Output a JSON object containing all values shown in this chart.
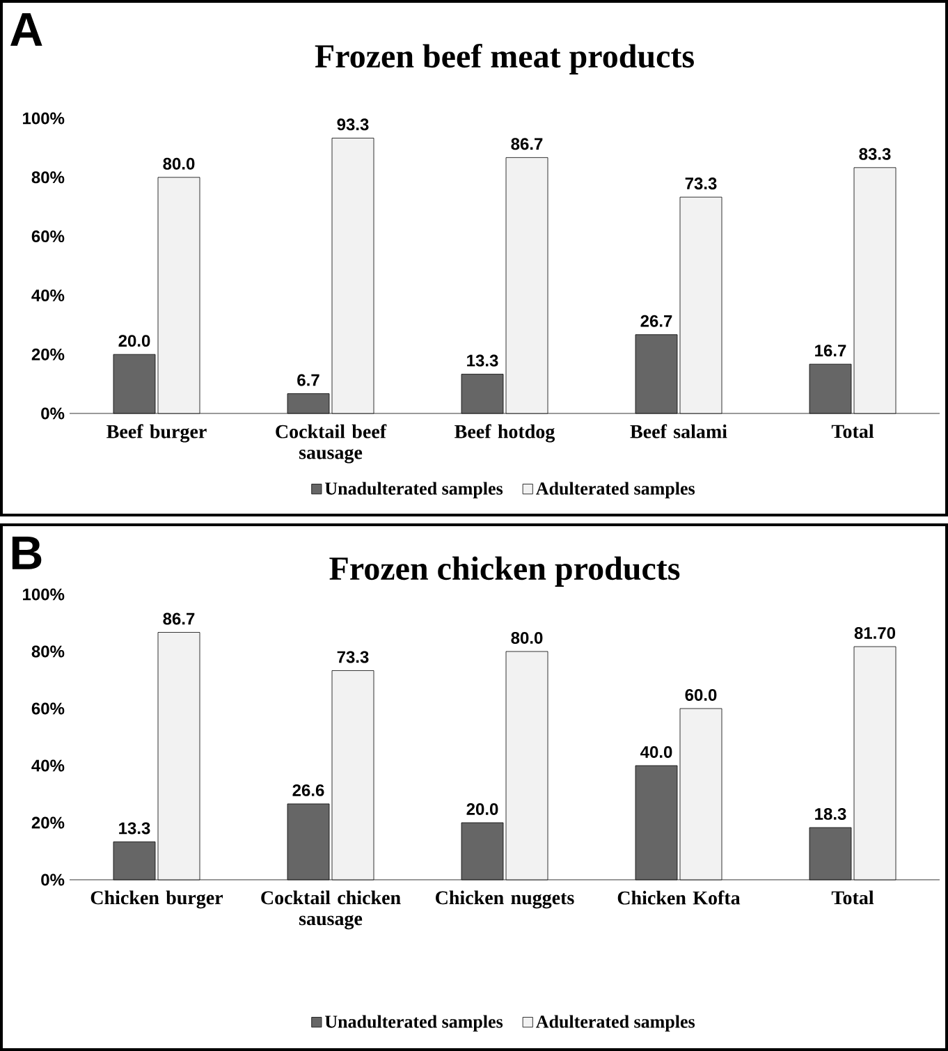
{
  "chart_data": [
    {
      "type": "bar",
      "title": "Frozen beef meat products",
      "annotations": [
        "A"
      ],
      "categories": [
        "Beef burger",
        "Cocktail beef sausage",
        "Beef hotdog",
        "Beef salami",
        "Total"
      ],
      "series": [
        {
          "name": "Unadulterated samples",
          "color": "#666666",
          "values": [
            20.0,
            6.7,
            13.3,
            26.7,
            16.7
          ],
          "value_labels": [
            "20.0",
            "6.7",
            "13.3",
            "26.7",
            "16.7"
          ]
        },
        {
          "name": "Adulterated samples",
          "color": "#f2f2f2",
          "values": [
            80.0,
            93.3,
            86.7,
            73.3,
            83.3
          ],
          "value_labels": [
            "80.0",
            "93.3",
            "86.7",
            "73.3",
            "83.3"
          ]
        }
      ],
      "ylim": [
        0,
        100
      ],
      "yticks": [
        {
          "value": 0,
          "label": "0%"
        },
        {
          "value": 20,
          "label": "20%"
        },
        {
          "value": 40,
          "label": "40%"
        },
        {
          "value": 60,
          "label": "60%"
        },
        {
          "value": 80,
          "label": "80%"
        },
        {
          "value": 100,
          "label": "100%"
        }
      ],
      "legend": "bottom",
      "grid": false
    },
    {
      "type": "bar",
      "title": "Frozen chicken products",
      "annotations": [
        "B"
      ],
      "categories": [
        "Chicken burger",
        "Cocktail chicken sausage",
        "Chicken nuggets",
        "Chicken Kofta",
        "Total"
      ],
      "series": [
        {
          "name": "Unadulterated samples",
          "color": "#666666",
          "values": [
            13.3,
            26.6,
            20.0,
            40.0,
            18.3
          ],
          "value_labels": [
            "13.3",
            "26.6",
            "20.0",
            "40.0",
            "18.3"
          ]
        },
        {
          "name": "Adulterated samples",
          "color": "#f2f2f2",
          "values": [
            86.7,
            73.3,
            80.0,
            60.0,
            81.7
          ],
          "value_labels": [
            "86.7",
            "73.3",
            "80.0",
            "60.0",
            "81.70"
          ]
        }
      ],
      "ylim": [
        0,
        100
      ],
      "yticks": [
        {
          "value": 0,
          "label": "0%"
        },
        {
          "value": 20,
          "label": "20%"
        },
        {
          "value": 40,
          "label": "40%"
        },
        {
          "value": 60,
          "label": "60%"
        },
        {
          "value": 80,
          "label": "80%"
        },
        {
          "value": 100,
          "label": "100%"
        }
      ],
      "legend": "bottom",
      "grid": false
    }
  ]
}
